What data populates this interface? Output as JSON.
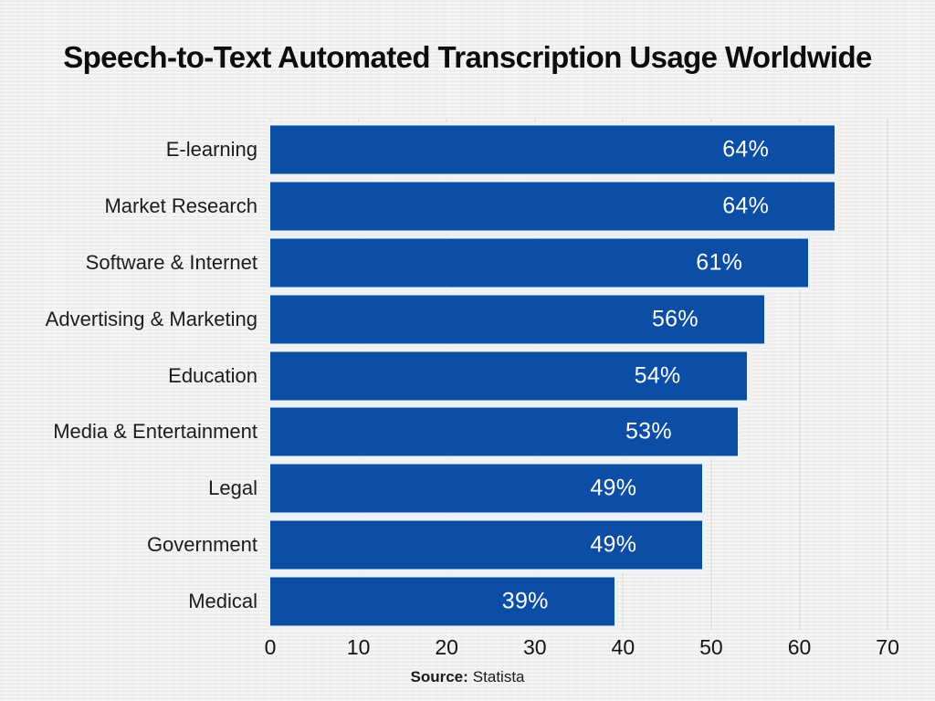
{
  "page": {
    "title": "Speech-to-Text Automated Transcription Usage Worldwide",
    "source_label": "Source:",
    "source_value": "Statista"
  },
  "colors": {
    "bar_fill": "#0c4ea6",
    "bar_stroke": "#ffffff",
    "background": "#f1f0ee",
    "title_text": "#0d0d0d",
    "value_label_text": "#ffffff",
    "gridline": "#d4d4d2"
  },
  "chart_data": {
    "type": "bar",
    "orientation": "horizontal",
    "title": "Speech-to-Text Automated Transcription Usage Worldwide",
    "categories": [
      "E-learning",
      "Market Research",
      "Software & Internet",
      "Advertising & Marketing",
      "Education",
      "Media & Entertainment",
      "Legal",
      "Government",
      "Medical"
    ],
    "values": [
      64,
      64,
      61,
      56,
      54,
      53,
      49,
      49,
      39
    ],
    "value_labels": [
      "64%",
      "64%",
      "61%",
      "56%",
      "54%",
      "53%",
      "49%",
      "49%",
      "39%"
    ],
    "xlabel": "",
    "ylabel": "",
    "xlim": [
      0,
      70
    ],
    "x_ticks": [
      0,
      10,
      20,
      30,
      40,
      50,
      60,
      70
    ],
    "grid": "vertical-gridlines-at-ticks",
    "legend": "none",
    "source": "Statista"
  }
}
